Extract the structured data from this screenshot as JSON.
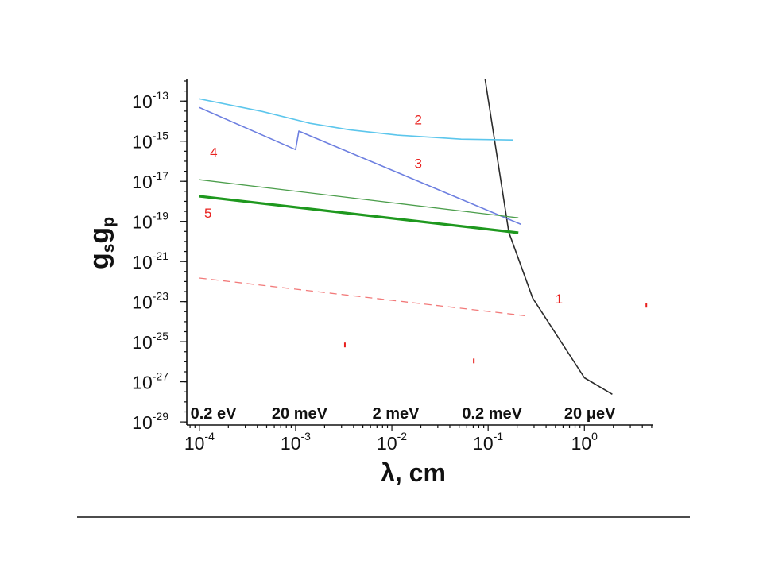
{
  "chart_data": {
    "type": "line",
    "xlabel": "λ, cm",
    "ylabel": [
      {
        "text": "g",
        "sub": false
      },
      {
        "text": "s",
        "sub": true
      },
      {
        "text": "g",
        "sub": false
      },
      {
        "text": "p",
        "sub": true
      }
    ],
    "xscale": "log",
    "yscale": "log",
    "xlim": [
      7.4e-05,
      5.2
    ],
    "ylim": [
      7e-30,
      1.2e-12
    ],
    "grid": false,
    "xticks": [
      {
        "base": "10",
        "exp": "-4",
        "value": 0.0001
      },
      {
        "base": "10",
        "exp": "-3",
        "value": 0.001
      },
      {
        "base": "10",
        "exp": "-2",
        "value": 0.01
      },
      {
        "base": "10",
        "exp": "-1",
        "value": 0.1
      },
      {
        "base": "10",
        "exp": "0",
        "value": 1
      }
    ],
    "yticks": [
      {
        "base": "10",
        "exp": "-13",
        "value": 1e-13
      },
      {
        "base": "10",
        "exp": "-15",
        "value": 1e-15
      },
      {
        "base": "10",
        "exp": "-17",
        "value": 1e-17
      },
      {
        "base": "10",
        "exp": "-19",
        "value": 1e-19
      },
      {
        "base": "10",
        "exp": "-21",
        "value": 1e-21
      },
      {
        "base": "10",
        "exp": "-23",
        "value": 1e-23
      },
      {
        "base": "10",
        "exp": "-25",
        "value": 1e-25
      },
      {
        "base": "10",
        "exp": "-27",
        "value": 1e-27
      },
      {
        "base": "10",
        "exp": "-29",
        "value": 1e-29
      }
    ],
    "energy_labels": [
      {
        "text": "0.2 eV",
        "x": 0.00014
      },
      {
        "text": "20 meV",
        "x": 0.0011
      },
      {
        "text": "2 meV",
        "x": 0.011
      },
      {
        "text": "0.2 meV",
        "x": 0.11
      },
      {
        "text": "20 μeV",
        "x": 1.14
      }
    ],
    "label_color": "#e8201e",
    "series": [
      {
        "name": "1",
        "color": "#2b2b2b",
        "x": [
          0.093,
          0.164,
          0.29,
          1.0,
          1.95
        ],
        "y": [
          1.2e-12,
          2.9e-20,
          1.5e-23,
          1.6e-27,
          2.4e-28
        ],
        "name_x": 0.545,
        "name_y": 1.4e-23
      },
      {
        "name": "2",
        "color": "#5cc6ec",
        "x": [
          0.0001,
          0.00045,
          0.00141,
          0.00365,
          0.0114,
          0.0524,
          0.18
        ],
        "y": [
          1.3e-13,
          3.05e-14,
          7.8e-15,
          3.7e-15,
          2e-15,
          1.26e-15,
          1.15e-15
        ],
        "name_x": 0.0188,
        "name_y": 1.2e-14
      },
      {
        "name": "3",
        "color": "#6d7fe0",
        "x": [
          0.0001,
          0.001,
          0.00108,
          0.218
        ],
        "y": [
          4.8e-14,
          3.8e-16,
          3.2e-15,
          7.2e-20
        ],
        "name_x": 0.0188,
        "name_y": 8.1e-17
      },
      {
        "name": "4",
        "color": "#4c9e4c",
        "x": [
          0.0001,
          0.206
        ],
        "y": [
          1.2e-17,
          1.5e-19
        ],
        "name_x": 0.000141,
        "name_y": 2.9e-16
      },
      {
        "name": "5",
        "color": "#1e981e",
        "x": [
          0.0001,
          0.206
        ],
        "y": [
          1.8e-18,
          2.7e-20
        ],
        "name_x": 0.000123,
        "name_y": 2.6e-19
      },
      {
        "color": "#f27a7a",
        "x": [
          0.0001,
          0.24
        ],
        "y": [
          1.5e-22,
          2e-24
        ]
      },
      {
        "type": "scatter",
        "color": "#e8201e",
        "x": [
          0.00325,
          0.071,
          4.4
        ],
        "y": [
          6.9e-26,
          1.1e-26,
          6.6e-24
        ]
      }
    ]
  }
}
